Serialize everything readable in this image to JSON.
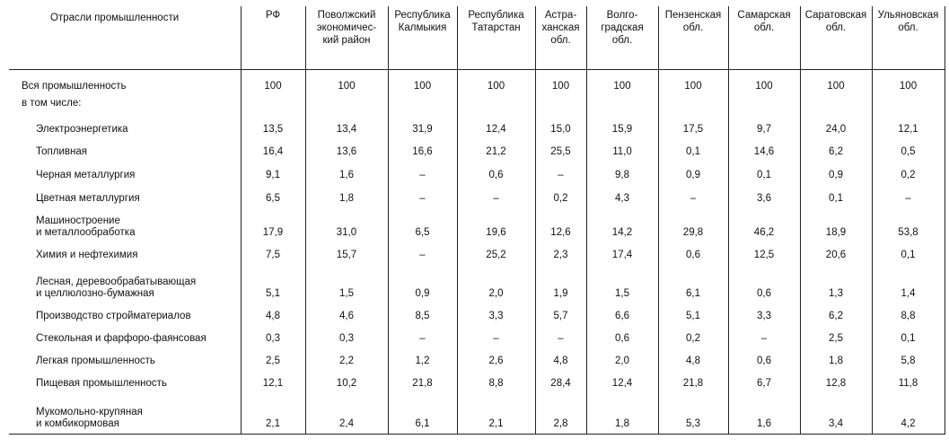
{
  "table": {
    "columns": [
      "Отрасли промышленности",
      "РФ",
      "Поволжский\nэкономичес-\nкий район",
      "Республика\nКалмыкия",
      "Республика\nТатарстан",
      "Астра-\nханская\nобл.",
      "Волго-\nградская\nобл.",
      "Пензенская\nобл.",
      "Самарская\nобл.",
      "Саратовская\nобл.",
      "Ульяновская\nобл."
    ],
    "rows": [
      {
        "label": "Вся промышленность",
        "values": [
          "100",
          "100",
          "100",
          "100",
          "100",
          "100",
          "100",
          "100",
          "100",
          "100"
        ]
      },
      {
        "label": "в том числе:",
        "values": [
          "",
          "",
          "",
          "",
          "",
          "",
          "",
          "",
          "",
          ""
        ]
      },
      {
        "label": "Электроэнергетика",
        "values": [
          "13,5",
          "13,4",
          "31,9",
          "12,4",
          "15,0",
          "15,9",
          "17,5",
          "9,7",
          "24,0",
          "12,1"
        ]
      },
      {
        "label": "Топливная",
        "values": [
          "16,4",
          "13,6",
          "16,6",
          "21,2",
          "25,5",
          "11,0",
          "0,1",
          "14,6",
          "6,2",
          "0,5"
        ]
      },
      {
        "label": "Черная металлургия",
        "values": [
          "9,1",
          "1,6",
          "–",
          "0,6",
          "–",
          "9,8",
          "0,9",
          "0,1",
          "0,9",
          "0,2"
        ]
      },
      {
        "label": "Цветная металлургия",
        "values": [
          "6,5",
          "1,8",
          "–",
          "–",
          "0,2",
          "4,3",
          "–",
          "3,6",
          "0,1",
          "–"
        ]
      },
      {
        "label": "Машиностроение\nи металлообработка",
        "values": [
          "17,9",
          "31,0",
          "6,5",
          "19,6",
          "12,6",
          "14,2",
          "29,8",
          "46,2",
          "18,9",
          "53,8"
        ]
      },
      {
        "label": "Химия и нефтехимия",
        "values": [
          "7,5",
          "15,7",
          "–",
          "25,2",
          "2,3",
          "17,4",
          "0,6",
          "12,5",
          "20,6",
          "0,1"
        ]
      },
      {
        "label": "Лесная, деревообрабатывающая\nи целлюлозно-бумажная",
        "values": [
          "5,1",
          "1,5",
          "0,9",
          "2,0",
          "1,9",
          "1,5",
          "6,1",
          "0,6",
          "1,3",
          "1,4"
        ]
      },
      {
        "label": "Производство стройматериалов",
        "values": [
          "4,8",
          "4,6",
          "8,5",
          "3,3",
          "5,7",
          "6,6",
          "5,1",
          "3,3",
          "6,2",
          "8,8"
        ]
      },
      {
        "label": "Стекольная и фарфоро-фаянсовая",
        "values": [
          "0,3",
          "0,3",
          "–",
          "–",
          "–",
          "0,6",
          "0,2",
          "–",
          "2,5",
          "0,1"
        ]
      },
      {
        "label": "Легкая промышленность",
        "values": [
          "2,5",
          "2,2",
          "1,2",
          "2,6",
          "4,8",
          "2,0",
          "4,8",
          "0,6",
          "1,8",
          "5,8"
        ]
      },
      {
        "label": "Пищевая промышленность",
        "values": [
          "12,1",
          "10,2",
          "21,8",
          "8,8",
          "28,4",
          "12,4",
          "21,8",
          "6,7",
          "12,8",
          "11,8"
        ]
      },
      {
        "label": "Мукомольно-крупяная\nи комбикормовая",
        "values": [
          "2,1",
          "2,4",
          "6,1",
          "2,1",
          "2,8",
          "1,8",
          "5,3",
          "1,6",
          "3,4",
          "4,2"
        ]
      }
    ]
  }
}
